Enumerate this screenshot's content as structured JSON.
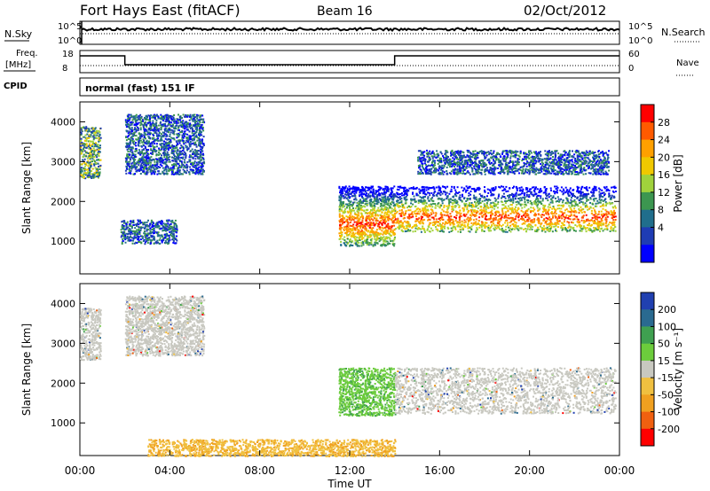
{
  "header": {
    "title": "Fort Hays East (fitACF)",
    "beam": "Beam 16",
    "date": "02/Oct/2012"
  },
  "aux_panels": {
    "nsky_label": "N.Sky",
    "nsearch_label": "N.Search",
    "noise_left_ticks": [
      "10^5",
      "10^0"
    ],
    "noise_right_ticks": [
      "10^5",
      "10^0"
    ],
    "freq_label": "Freq.",
    "freq_unit": "[MHz]",
    "freq_ticks": [
      "18",
      "8"
    ],
    "nave_label": "Nave",
    "nave_ticks": [
      "60",
      "0"
    ],
    "cpid_label": "CPID",
    "cpid_text": "normal (fast) 151 IF"
  },
  "chart_data": [
    {
      "type": "heatmap",
      "panel": "power",
      "ylabel": "Slant Range [km]",
      "yticks": [
        1000,
        2000,
        3000,
        4000
      ],
      "ylim": [
        180,
        4500
      ],
      "xlim": [
        0,
        24
      ],
      "colorbar": {
        "label": "Power [dB]",
        "ticks": [
          "28",
          "24",
          "20",
          "16",
          "12",
          "8",
          "4"
        ],
        "colors": [
          "#ff0000",
          "#ff5a00",
          "#ffa000",
          "#f0c800",
          "#a0d23c",
          "#3c9650",
          "#206e8c",
          "#1e3cb4",
          "#0000ff"
        ]
      },
      "regions": [
        {
          "t0": 0.0,
          "t1": 0.9,
          "r0": 2600,
          "r1": 3900,
          "level": "mid"
        },
        {
          "t0": 2.0,
          "t1": 5.5,
          "r0": 2700,
          "r1": 4200,
          "level": "low"
        },
        {
          "t0": 1.8,
          "t1": 4.3,
          "r0": 950,
          "r1": 1550,
          "level": "low"
        },
        {
          "t0": 11.5,
          "t1": 14.0,
          "r0": 900,
          "r1": 2400,
          "level": "high"
        },
        {
          "t0": 14.0,
          "t1": 23.8,
          "r0": 1250,
          "r1": 2400,
          "level": "high"
        },
        {
          "t0": 15.0,
          "t1": 23.5,
          "r0": 2700,
          "r1": 3300,
          "level": "low"
        }
      ]
    },
    {
      "type": "heatmap",
      "panel": "velocity",
      "ylabel": "Slant Range [km]",
      "xlabel": "Time UT",
      "xticks": [
        "00:00",
        "04:00",
        "08:00",
        "12:00",
        "16:00",
        "20:00",
        "00:00"
      ],
      "yticks": [
        1000,
        2000,
        3000,
        4000
      ],
      "ylim": [
        180,
        4500
      ],
      "xlim": [
        0,
        24
      ],
      "colorbar": {
        "label": "Velocity [m s⁻¹]",
        "ticks": [
          "200",
          "100",
          "50",
          "15",
          "-15",
          "-50",
          "-100",
          "-200"
        ],
        "colors": [
          "#2040b0",
          "#2a6a90",
          "#3fa050",
          "#6ccc3c",
          "#c8c8c0",
          "#f0c040",
          "#f0a020",
          "#f06010",
          "#ff0000"
        ]
      },
      "regions": [
        {
          "t0": 0.0,
          "t1": 0.9,
          "r0": 2600,
          "r1": 3900,
          "level": "ground"
        },
        {
          "t0": 2.0,
          "t1": 5.5,
          "r0": 2700,
          "r1": 4200,
          "level": "ground"
        },
        {
          "t0": 11.5,
          "t1": 14.0,
          "r0": 1200,
          "r1": 2400,
          "level": "pos"
        },
        {
          "t0": 14.0,
          "t1": 23.8,
          "r0": 1250,
          "r1": 2400,
          "level": "ground"
        },
        {
          "t0": 3.0,
          "t1": 14.0,
          "r0": 180,
          "r1": 600,
          "level": "neg"
        }
      ]
    }
  ]
}
